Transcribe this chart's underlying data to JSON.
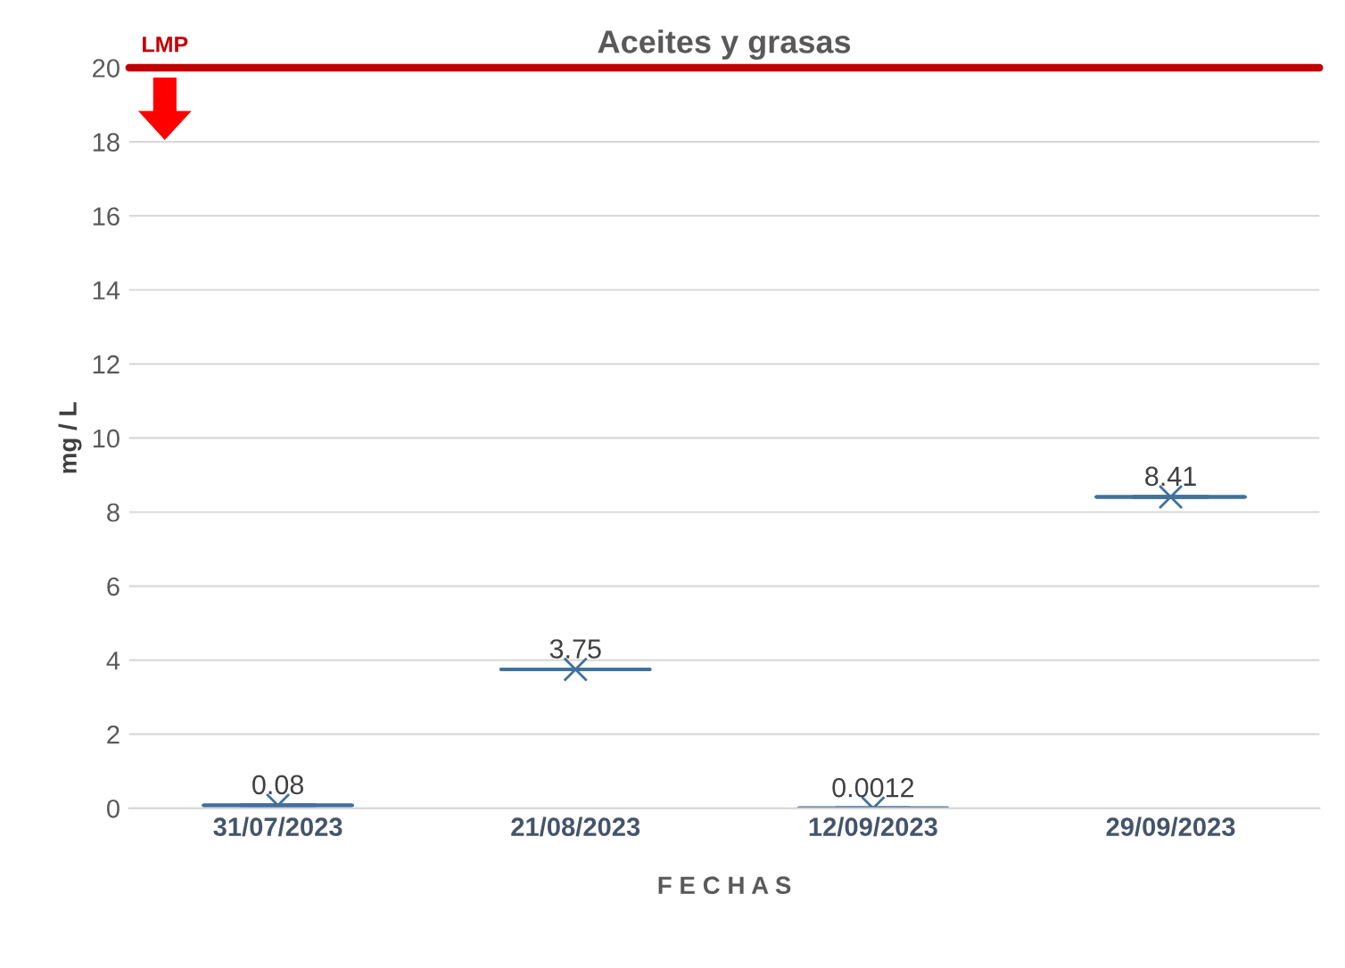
{
  "chart_data": {
    "type": "box",
    "title": "Aceites y grasas",
    "xlabel": "F E C H A S",
    "ylabel": "mg / L",
    "categories": [
      "31/07/2023",
      "21/08/2023",
      "12/09/2023",
      "29/09/2023"
    ],
    "boxes": [
      {
        "low": 0.08,
        "q1": 0.08,
        "median": 0.08,
        "q3": 0.08,
        "high": 0.08,
        "mean": 0.08
      },
      {
        "low": 3.75,
        "q1": 3.75,
        "median": 3.75,
        "q3": 3.75,
        "high": 3.75,
        "mean": 3.75
      },
      {
        "low": 0.0012,
        "q1": 0.0012,
        "median": 0.0012,
        "q3": 0.0012,
        "high": 0.0012,
        "mean": 0.0012
      },
      {
        "low": 8.41,
        "q1": 8.41,
        "median": 8.41,
        "q3": 8.41,
        "high": 8.41,
        "mean": 8.41
      }
    ],
    "color": "#41719c",
    "ylim": [
      0,
      20
    ],
    "yticks": [
      0,
      2,
      4,
      6,
      8,
      10,
      12,
      14,
      16,
      18,
      20
    ],
    "grid": "y",
    "marker": "cross",
    "value_labels": [
      "0.08",
      "3.75",
      "0.0012",
      "8.41"
    ],
    "ref_lines": [
      {
        "axis": "y",
        "value": 20,
        "label": "LMP",
        "color": "#c00000",
        "line_style": "solid"
      }
    ]
  }
}
